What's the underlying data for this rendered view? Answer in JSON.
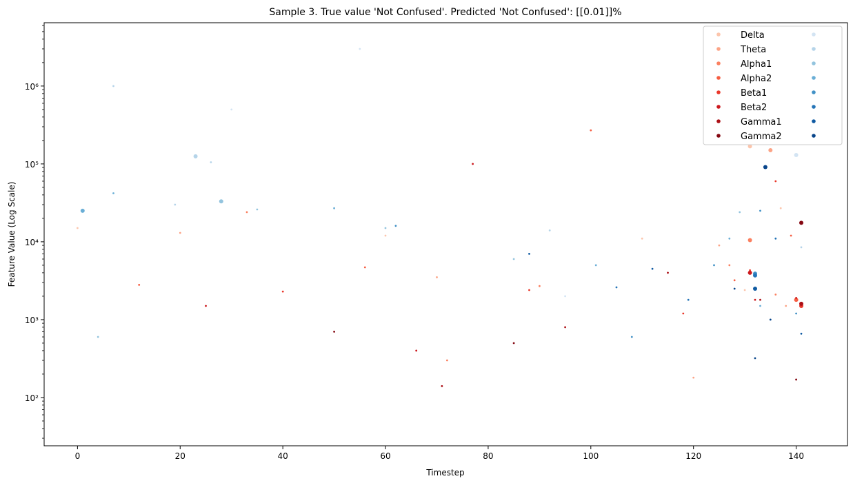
{
  "chart_data": {
    "type": "scatter",
    "title": "Sample 3. True value 'Not Confused'. Predicted 'Not Confused': [[0.01]]%",
    "xlabel": "Timestep",
    "ylabel": "Feature Value (Log Scale)",
    "xlim": [
      -6.5,
      150
    ],
    "ylim": [
      24,
      6500000
    ],
    "yscale": "log",
    "grid": false,
    "legend_position": "top-right",
    "legend_columns": 2,
    "x_ticks": [
      0,
      20,
      40,
      60,
      80,
      100,
      120,
      140
    ],
    "y_ticks": [
      {
        "value": 100,
        "label": "10²"
      },
      {
        "value": 1000,
        "label": "10³"
      },
      {
        "value": 10000,
        "label": "10⁴"
      },
      {
        "value": 100000,
        "label": "10⁵"
      },
      {
        "value": 1000000,
        "label": "10⁶"
      }
    ],
    "series": [
      {
        "name": "Delta",
        "color": "#fcc5ac",
        "values": [
          [
            131,
            168000
          ],
          [
            0,
            15000
          ],
          [
            60,
            12000
          ],
          [
            110,
            11000
          ],
          [
            130,
            2400
          ],
          [
            137,
            27000
          ]
        ]
      },
      {
        "name": "Theta",
        "color": "#fca486",
        "values": [
          [
            135,
            150000
          ],
          [
            20,
            13000
          ],
          [
            70,
            3500
          ],
          [
            125,
            9000
          ],
          [
            138,
            1500
          ],
          [
            120,
            180
          ]
        ]
      },
      {
        "name": "Alpha1",
        "color": "#fb8060",
        "values": [
          [
            131,
            10500
          ],
          [
            33,
            24000
          ],
          [
            90,
            2700
          ],
          [
            127,
            5000
          ],
          [
            136,
            2100
          ],
          [
            72,
            300
          ]
        ]
      },
      {
        "name": "Alpha2",
        "color": "#f65d42",
        "values": [
          [
            140,
            1800
          ],
          [
            12,
            2800
          ],
          [
            56,
            4700
          ],
          [
            100,
            270000
          ],
          [
            128,
            3200
          ],
          [
            139,
            12000
          ]
        ]
      },
      {
        "name": "Beta1",
        "color": "#ea372a",
        "values": [
          [
            141,
            1500
          ],
          [
            40,
            2300
          ],
          [
            88,
            2400
          ],
          [
            131,
            4300
          ],
          [
            136,
            60000
          ],
          [
            118,
            1200
          ]
        ]
      },
      {
        "name": "Beta2",
        "color": "#cc191e",
        "values": [
          [
            131,
            4000
          ],
          [
            132,
            1800
          ],
          [
            77,
            100000
          ],
          [
            140,
            1900
          ],
          [
            66,
            400
          ],
          [
            25,
            1500
          ]
        ]
      },
      {
        "name": "Gamma1",
        "color": "#ac1016",
        "values": [
          [
            141,
            1600
          ],
          [
            133,
            1800
          ],
          [
            71,
            140
          ],
          [
            115,
            4000
          ],
          [
            95,
            800
          ]
        ]
      },
      {
        "name": "Gamma2",
        "color": "#840711",
        "values": [
          [
            141,
            17500
          ],
          [
            132,
            3800
          ],
          [
            85,
            500
          ],
          [
            50,
            700
          ],
          [
            140,
            170
          ]
        ]
      },
      {
        "name": "",
        "color": "#d3e4f3",
        "values": [
          [
            140,
            130000
          ],
          [
            55,
            3000000
          ],
          [
            30,
            500000
          ],
          [
            125,
            1500000
          ],
          [
            143,
            300000
          ],
          [
            95,
            2000
          ]
        ]
      },
      {
        "name": "",
        "color": "#b5d4e9",
        "values": [
          [
            23,
            125000
          ],
          [
            26,
            105000
          ],
          [
            19,
            30000
          ],
          [
            92,
            14000
          ],
          [
            141,
            8500
          ],
          [
            7,
            1000000
          ]
        ]
      },
      {
        "name": "",
        "color": "#93c4de",
        "values": [
          [
            28,
            33000
          ],
          [
            35,
            26000
          ],
          [
            60,
            15000
          ],
          [
            85,
            6000
          ],
          [
            129,
            24000
          ],
          [
            4,
            600
          ]
        ]
      },
      {
        "name": "",
        "color": "#6aaed6",
        "values": [
          [
            1,
            25000
          ],
          [
            7,
            42000
          ],
          [
            50,
            27000
          ],
          [
            101,
            5000
          ],
          [
            127,
            11000
          ],
          [
            133,
            1500
          ]
        ]
      },
      {
        "name": "",
        "color": "#4191c6",
        "values": [
          [
            132,
            3900
          ],
          [
            62,
            16000
          ],
          [
            133,
            25000
          ],
          [
            108,
            600
          ],
          [
            124,
            5000
          ],
          [
            140,
            1200
          ]
        ]
      },
      {
        "name": "",
        "color": "#2474b7",
        "values": [
          [
            132,
            3700
          ],
          [
            134,
            90000
          ],
          [
            136,
            11000
          ],
          [
            105,
            2600
          ],
          [
            119,
            1800
          ]
        ]
      },
      {
        "name": "",
        "color": "#0f5aa2",
        "values": [
          [
            132,
            2500
          ],
          [
            134,
            89000
          ],
          [
            141,
            660
          ],
          [
            88,
            7000
          ],
          [
            112,
            4500
          ]
        ]
      },
      {
        "name": "",
        "color": "#08458a",
        "values": [
          [
            134,
            91000
          ],
          [
            132,
            320
          ],
          [
            135,
            1000
          ],
          [
            128,
            2500
          ]
        ]
      }
    ]
  }
}
